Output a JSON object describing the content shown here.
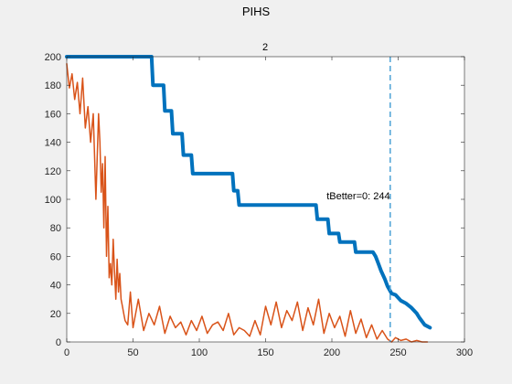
{
  "figure": {
    "title": "PIHS",
    "background": "#f0f0f0"
  },
  "chart_data": {
    "type": "line",
    "title": "2",
    "xlabel": "",
    "ylabel": "",
    "xlim": [
      0,
      300
    ],
    "ylim": [
      0,
      200
    ],
    "xticks": [
      0,
      50,
      100,
      150,
      200,
      250,
      300
    ],
    "yticks": [
      0,
      20,
      40,
      60,
      80,
      100,
      120,
      140,
      160,
      180,
      200
    ],
    "grid": false,
    "series": [
      {
        "color": "#0072bd",
        "style": "step",
        "x": [
          0,
          64,
          65,
          73,
          74,
          79,
          80,
          87,
          88,
          94,
          95,
          100,
          101,
          125,
          126,
          129,
          130,
          188,
          189,
          197,
          198,
          205,
          206,
          217,
          218,
          231,
          233,
          235,
          237,
          240,
          242,
          245,
          248,
          252,
          256,
          260,
          264,
          266,
          270,
          274
        ],
        "y": [
          200,
          200,
          180,
          180,
          162,
          162,
          146,
          146,
          131,
          131,
          118,
          118,
          118,
          118,
          106,
          106,
          96,
          96,
          86,
          86,
          76,
          76,
          70,
          70,
          63,
          63,
          60,
          55,
          50,
          44,
          39,
          34,
          33,
          29,
          27,
          24,
          20,
          17,
          12,
          10
        ]
      },
      {
        "color": "#d95319",
        "style": "line",
        "x": [
          0,
          2,
          4,
          6,
          8,
          10,
          12,
          14,
          16,
          18,
          20,
          22,
          24,
          25,
          26,
          27,
          28,
          29,
          30,
          31,
          32,
          33,
          34,
          35,
          36,
          37,
          38,
          39,
          40,
          41,
          42,
          43,
          44,
          46,
          48,
          50,
          54,
          58,
          62,
          66,
          70,
          74,
          78,
          82,
          86,
          90,
          94,
          98,
          102,
          106,
          110,
          114,
          118,
          122,
          126,
          130,
          134,
          138,
          142,
          146,
          150,
          154,
          158,
          162,
          166,
          170,
          174,
          178,
          182,
          186,
          190,
          194,
          198,
          202,
          206,
          210,
          214,
          218,
          222,
          226,
          230,
          234,
          238,
          242,
          245,
          248,
          252,
          256,
          260,
          264,
          268,
          272
        ],
        "y": [
          195,
          178,
          188,
          170,
          182,
          160,
          185,
          150,
          165,
          140,
          160,
          100,
          160,
          140,
          105,
          125,
          80,
          130,
          60,
          95,
          45,
          55,
          40,
          72,
          50,
          30,
          58,
          35,
          48,
          30,
          25,
          20,
          15,
          12,
          35,
          10,
          30,
          8,
          20,
          12,
          25,
          6,
          18,
          10,
          14,
          5,
          15,
          8,
          18,
          6,
          12,
          14,
          8,
          20,
          5,
          10,
          8,
          4,
          15,
          5,
          25,
          12,
          28,
          10,
          22,
          15,
          28,
          8,
          24,
          12,
          30,
          6,
          20,
          10,
          18,
          4,
          22,
          6,
          16,
          3,
          12,
          2,
          8,
          2,
          0,
          3,
          1,
          2,
          0,
          1,
          0,
          0
        ]
      }
    ],
    "vline": {
      "x": 244,
      "color": "#4da3d6",
      "style": "dashed"
    },
    "annotation": {
      "text": "tBetter=0: 244",
      "x": 196,
      "y": 100
    }
  }
}
